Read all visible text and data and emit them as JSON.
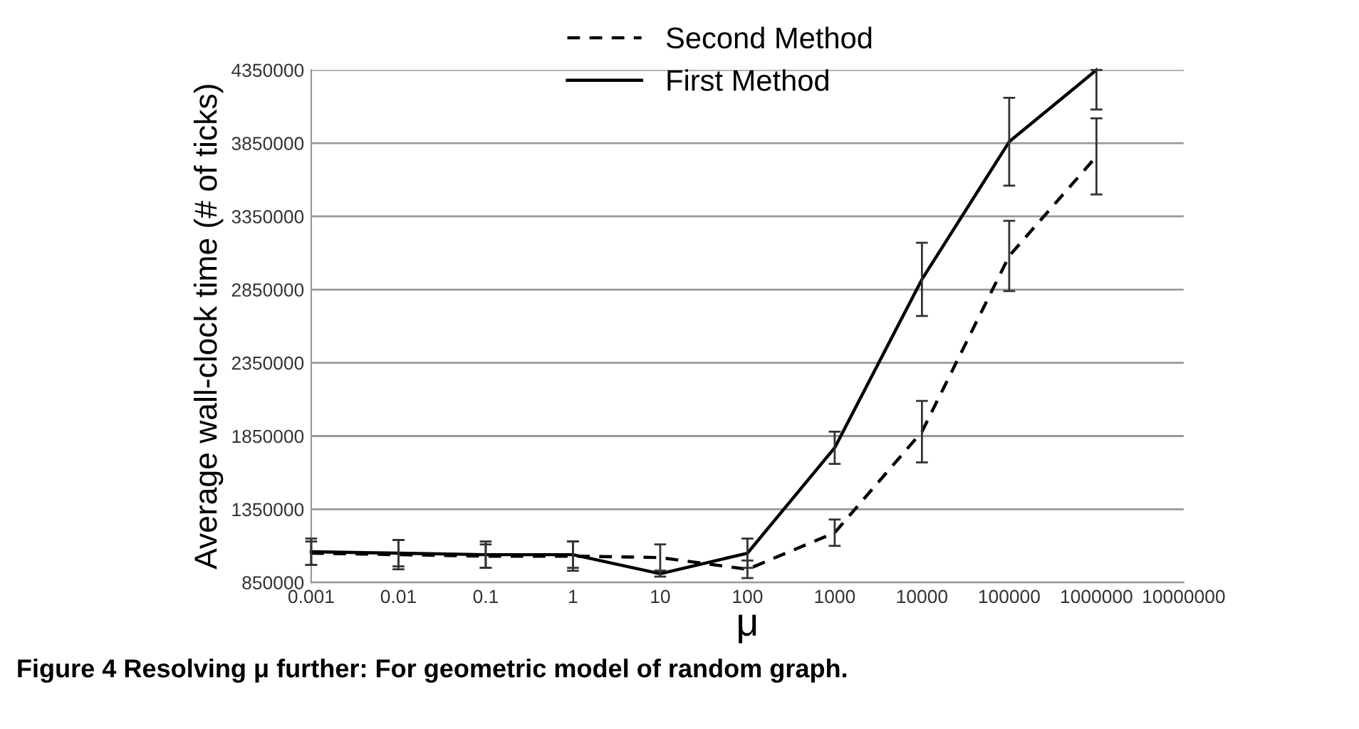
{
  "chart_data": {
    "type": "line",
    "ylabel": "Average wall-clock time (# of ticks)",
    "xlabel": "μ",
    "annotations": [
      "Figure 4 Resolving μ further: For geometric model of random graph."
    ],
    "x": [
      0.001,
      0.01,
      0.1,
      1,
      10,
      100,
      1000,
      10000,
      100000,
      1000000
    ],
    "series": [
      {
        "name": "Second Method",
        "color": "#000000",
        "line_style": "dashed",
        "values": [
          1050000,
          1040000,
          1030000,
          1030000,
          1020000,
          940000,
          1190000,
          1880000,
          3080000,
          3760000
        ],
        "errors": [
          80000,
          100000,
          80000,
          100000,
          90000,
          60000,
          90000,
          210000,
          240000,
          260000
        ]
      },
      {
        "name": "First Method",
        "color": "#000000",
        "line_style": "solid",
        "values": [
          1060000,
          1050000,
          1040000,
          1040000,
          910000,
          1050000,
          1770000,
          2920000,
          3860000,
          4350000
        ],
        "errors": [
          90000,
          90000,
          90000,
          90000,
          20000,
          100000,
          110000,
          250000,
          300000,
          [
            4080000,
            4350000
          ]
        ]
      }
    ],
    "log": "x",
    "xlim": [
      0.001,
      10000000
    ],
    "xticks": [
      {
        "value": 0.001,
        "label": "0.001"
      },
      {
        "value": 0.01,
        "label": "0.01"
      },
      {
        "value": 0.1,
        "label": "0.1"
      },
      1,
      10,
      100,
      1000,
      10000,
      100000,
      1000000,
      10000000
    ],
    "ylim": [
      850000,
      4350000
    ],
    "yticks": [
      850000,
      1350000,
      1850000,
      2350000,
      2850000,
      3350000,
      3850000,
      4350000
    ],
    "grid": "y",
    "legend": "top",
    "marker": "none"
  }
}
